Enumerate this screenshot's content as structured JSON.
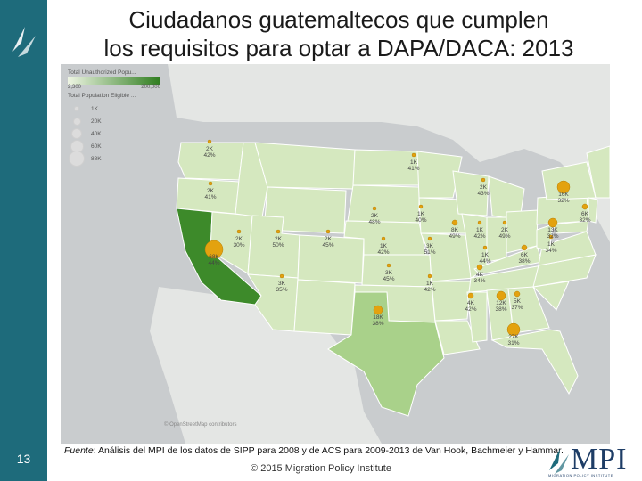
{
  "slide": {
    "title_line1": "Ciudadanos guatemaltecos que cumplen",
    "title_line2": "los requisitos para optar a DAPA/DACA: 2013",
    "page_number": "13",
    "source_label": "Fuente",
    "source_text": ": Análisis del MPI de los datos de SIPP para 2008 y de ACS para 2009-2013 de Van Hook, Bachmeier y Hammar.",
    "footer": "© 2015 Migration Policy Institute",
    "logo_text": "MPI",
    "logo_subtitle": "MIGRATION POLICY INSTITUTE",
    "map_credit": "© OpenStreetMap contributors"
  },
  "legend": {
    "color_title": "Total Unauthorized Popu...",
    "color_min": "2,300",
    "color_max": "200,000",
    "size_title": "Total Population Eligible ...",
    "sizes": [
      "1K",
      "20K",
      "40K",
      "60K",
      "88K"
    ]
  },
  "colors": {
    "sidebar": "#1e6b7b",
    "water": "#c9ccce",
    "land_bg": "#e4e6e4",
    "state_light": "#d5e8bf",
    "state_mid": "#a9d18a",
    "state_dark": "#3d8a2a",
    "bubble": "#e3a20f"
  },
  "state_labels": [
    {
      "count": "2K",
      "pct": "42%"
    },
    {
      "count": "2K",
      "pct": "41%"
    },
    {
      "count": "2K",
      "pct": "30%"
    },
    {
      "count": "2K",
      "pct": "50%"
    },
    {
      "count": "2K",
      "pct": "45%"
    },
    {
      "count": "68K",
      "pct": "44%"
    },
    {
      "count": "3K",
      "pct": "35%"
    },
    {
      "count": "1K",
      "pct": "41%"
    },
    {
      "count": "2K",
      "pct": "48%"
    },
    {
      "count": "1K",
      "pct": "40%"
    },
    {
      "count": "1K",
      "pct": "42%"
    },
    {
      "count": "3K",
      "pct": "45%"
    },
    {
      "count": "18K",
      "pct": "38%"
    },
    {
      "count": "1K",
      "pct": "42%"
    },
    {
      "count": "3K",
      "pct": "51%"
    },
    {
      "count": "2K",
      "pct": "43%"
    },
    {
      "count": "8K",
      "pct": "49%"
    },
    {
      "count": "1K",
      "pct": "42%"
    },
    {
      "count": "2K",
      "pct": "49%"
    },
    {
      "count": "1K",
      "pct": "44%"
    },
    {
      "count": "4K",
      "pct": "34%"
    },
    {
      "count": "4K",
      "pct": "42%"
    },
    {
      "count": "12K",
      "pct": "38%"
    },
    {
      "count": "5K",
      "pct": "37%"
    },
    {
      "count": "6K",
      "pct": "38%"
    },
    {
      "count": "1K",
      "pct": "34%"
    },
    {
      "count": "13K",
      "pct": "32%"
    },
    {
      "count": "16K",
      "pct": "32%"
    },
    {
      "count": "6K",
      "pct": "32%"
    },
    {
      "count": "27K",
      "pct": "31%"
    }
  ]
}
